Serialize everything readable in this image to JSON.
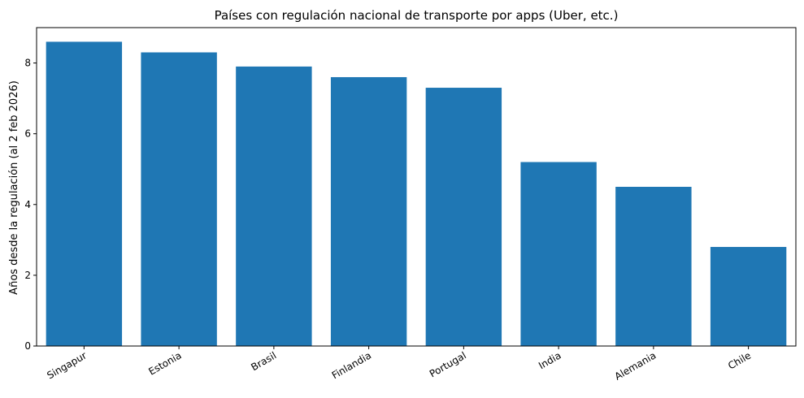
{
  "chart_data": {
    "type": "bar",
    "title": "Países con regulación nacional de transporte por apps (Uber, etc.)",
    "xlabel": "",
    "ylabel": "Años desde la regulación (al 2 feb 2026)",
    "categories": [
      "Singapur",
      "Estonia",
      "Brasil",
      "Finlandia",
      "Portugal",
      "India",
      "Alemania",
      "Chile"
    ],
    "values": [
      8.6,
      8.3,
      7.9,
      7.6,
      7.3,
      5.2,
      4.5,
      2.8
    ],
    "ylim": [
      0,
      9.0
    ],
    "yticks": [
      0,
      2,
      4,
      6,
      8
    ],
    "grid": false,
    "bar_color": "#1f77b4"
  }
}
